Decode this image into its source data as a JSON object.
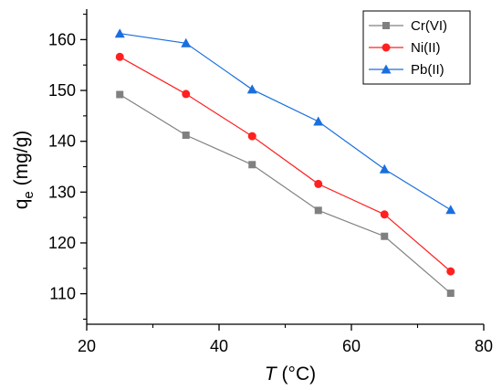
{
  "chart_data": {
    "type": "line",
    "title": "",
    "xlabel_italic": "T",
    "xlabel_rest": " (°C)",
    "ylabel_base": "q",
    "ylabel_sub": "e",
    "ylabel_rest": " (mg/g)",
    "x": [
      25,
      35,
      45,
      55,
      65,
      75
    ],
    "xlim": [
      20,
      80
    ],
    "ylim": [
      104,
      166
    ],
    "xticks": [
      20,
      40,
      60,
      80
    ],
    "yticks": [
      110,
      120,
      130,
      140,
      150,
      160
    ],
    "grid": false,
    "legend_position": "top-right",
    "series": [
      {
        "name": "Cr(VI)",
        "marker": "square",
        "color": "#808080",
        "values": [
          149.2,
          141.2,
          135.4,
          126.4,
          121.3,
          110.1
        ]
      },
      {
        "name": "Ni(II)",
        "marker": "circle",
        "color": "#ff2020",
        "values": [
          156.6,
          149.3,
          141.0,
          131.6,
          125.6,
          114.4
        ]
      },
      {
        "name": "Pb(II)",
        "marker": "triangle",
        "color": "#1a6fdf",
        "values": [
          161.2,
          159.3,
          150.2,
          143.9,
          134.5,
          126.5
        ]
      }
    ]
  }
}
